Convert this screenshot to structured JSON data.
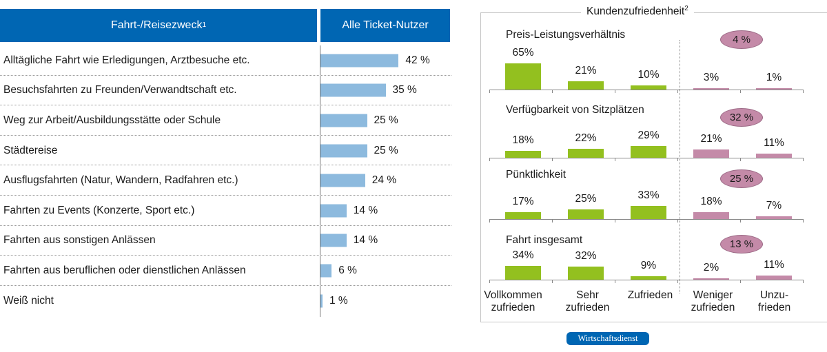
{
  "left_table": {
    "header_purpose": "Fahrt-/Reisezweck",
    "header_purpose_sup": "1",
    "header_users": "Alle Ticket-Nutzer",
    "rows": [
      {
        "label": "Alltägliche Fahrt wie Erledigungen, Arztbesuche etc.",
        "value": 42,
        "value_label": "42 %"
      },
      {
        "label": "Besuchsfahrten zu Freunden/Verwandtschaft etc.",
        "value": 35,
        "value_label": "35 %"
      },
      {
        "label": "Weg zur Arbeit/Ausbildungsstätte oder Schule",
        "value": 25,
        "value_label": "25 %"
      },
      {
        "label": "Städtereise",
        "value": 25,
        "value_label": "25 %"
      },
      {
        "label": "Ausflugsfahrten (Natur, Wandern, Radfahren etc.)",
        "value": 24,
        "value_label": "24 %"
      },
      {
        "label": "Fahrten zu Events (Konzerte, Sport etc.)",
        "value": 14,
        "value_label": "14 %"
      },
      {
        "label": "Fahrten aus sonstigen Anlässen",
        "value": 14,
        "value_label": "14 %"
      },
      {
        "label": "Fahrten aus beruflichen oder dienstlichen Anlässen",
        "value": 6,
        "value_label": "6 %"
      },
      {
        "label": "Weiß nicht",
        "value": 1,
        "value_label": "1 %"
      }
    ],
    "bar_color": "#8dbade",
    "header_color": "#0066b3"
  },
  "right_panel": {
    "title": "Kundenzufriedenheit",
    "title_sup": "2",
    "categories": [
      "Vollkommen\nzufrieden",
      "Sehr\nzufrieden",
      "Zufrieden",
      "Weniger\nzufrieden",
      "Unzu-\nfrieden"
    ],
    "category_lines": [
      [
        "Vollkommen",
        "zufrieden"
      ],
      [
        "Sehr",
        "zufrieden"
      ],
      [
        "Zufrieden",
        ""
      ],
      [
        "Weniger",
        "zufrieden"
      ],
      [
        "Unzu-",
        "frieden"
      ]
    ],
    "positive_color": "#93c01f",
    "negative_color": "#c48aa8",
    "groups": [
      {
        "title": "Preis-Leistungsverhältnis",
        "values": [
          65,
          21,
          10,
          3,
          1
        ],
        "labels": [
          "65%",
          "21%",
          "10%",
          "3%",
          "1%"
        ],
        "negative_total": "4 %"
      },
      {
        "title": "Verfügbarkeit von Sitzplätzen",
        "values": [
          18,
          22,
          29,
          21,
          11
        ],
        "labels": [
          "18%",
          "22%",
          "29%",
          "21%",
          "11%"
        ],
        "negative_total": "32 %"
      },
      {
        "title": "Pünktlichkeit",
        "values": [
          17,
          25,
          33,
          18,
          7
        ],
        "labels": [
          "17%",
          "25%",
          "33%",
          "18%",
          "7%"
        ],
        "negative_total": "25 %"
      },
      {
        "title": "Fahrt insgesamt",
        "values": [
          34,
          32,
          9,
          2,
          11
        ],
        "labels": [
          "34%",
          "32%",
          "9%",
          "2%",
          "11%"
        ],
        "negative_total": "13 %"
      }
    ]
  },
  "footer": {
    "source_badge": "Wirtschaftsdienst"
  },
  "chart_data": [
    {
      "type": "bar",
      "orientation": "horizontal",
      "title": "Fahrt-/Reisezweck — Alle Ticket-Nutzer",
      "categories": [
        "Alltägliche Fahrt wie Erledigungen, Arztbesuche etc.",
        "Besuchsfahrten zu Freunden/Verwandtschaft etc.",
        "Weg zur Arbeit/Ausbildungsstätte oder Schule",
        "Städtereise",
        "Ausflugsfahrten (Natur, Wandern, Radfahren etc.)",
        "Fahrten zu Events (Konzerte, Sport etc.)",
        "Fahrten aus sonstigen Anlässen",
        "Fahrten aus beruflichen oder dienstlichen Anlässen",
        "Weiß nicht"
      ],
      "values": [
        42,
        35,
        25,
        25,
        24,
        14,
        14,
        6,
        1
      ],
      "xlabel": "",
      "ylabel": "",
      "unit": "%"
    },
    {
      "type": "bar",
      "title": "Kundenzufriedenheit",
      "categories": [
        "Vollkommen zufrieden",
        "Sehr zufrieden",
        "Zufrieden",
        "Weniger zufrieden",
        "Unzufrieden"
      ],
      "series": [
        {
          "name": "Preis-Leistungsverhältnis",
          "values": [
            65,
            21,
            10,
            3,
            1
          ],
          "negative_total": 4
        },
        {
          "name": "Verfügbarkeit von Sitzplätzen",
          "values": [
            18,
            22,
            29,
            21,
            11
          ],
          "negative_total": 32
        },
        {
          "name": "Pünktlichkeit",
          "values": [
            17,
            25,
            33,
            18,
            7
          ],
          "negative_total": 25
        },
        {
          "name": "Fahrt insgesamt",
          "values": [
            34,
            32,
            9,
            2,
            11
          ],
          "negative_total": 13
        }
      ],
      "unit": "%"
    }
  ]
}
